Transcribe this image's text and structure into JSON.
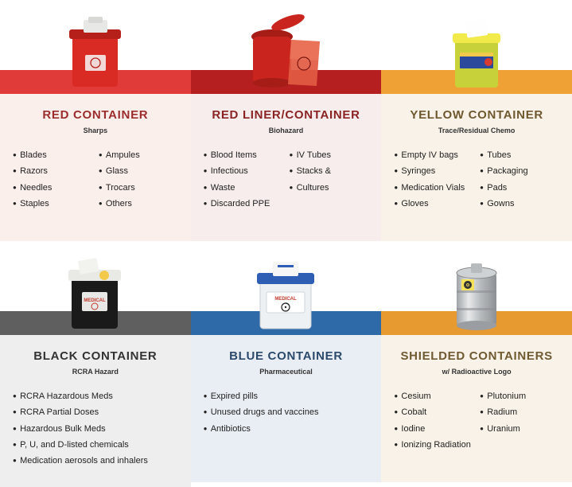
{
  "containers": [
    {
      "key": "red",
      "title": "RED CONTAINER",
      "subtitle": "Sharps",
      "band_color": "#e03a39",
      "bg_color": "#fbefec",
      "title_color": "#9b2d2d",
      "two_col": true,
      "items_left": [
        "Blades",
        "Razors",
        "Needles",
        "Staples"
      ],
      "items_right": [
        "Ampules",
        "Glass",
        "Trocars",
        "Others"
      ],
      "illus": "red_box"
    },
    {
      "key": "redliner",
      "title": "RED LINER/CONTAINER",
      "subtitle": "Biohazard",
      "band_color": "#b51f1f",
      "bg_color": "#f6edec",
      "title_color": "#8a2424",
      "two_col": true,
      "items_left": [
        "Blood Items",
        "Infectious",
        "Waste",
        "Discarded PPE"
      ],
      "items_right": [
        "IV Tubes",
        "Stacks &",
        "Cultures"
      ],
      "illus": "red_bin"
    },
    {
      "key": "yellow",
      "title": "YELLOW CONTAINER",
      "subtitle": "Trace/Residual Chemo",
      "band_color": "#f0a135",
      "bg_color": "#f9f2e8",
      "title_color": "#6e582f",
      "two_col": true,
      "items_left": [
        "Empty IV bags",
        "Syringes",
        "Medication Vials",
        "Gloves"
      ],
      "items_right": [
        "Tubes",
        "Packaging",
        "Pads",
        "Gowns"
      ],
      "illus": "yellow_box"
    },
    {
      "key": "black",
      "title": "BLACK CONTAINER",
      "subtitle": "RCRA Hazard",
      "band_color": "#5f5f5f",
      "bg_color": "#eeeeee",
      "title_color": "#333333",
      "two_col": false,
      "items_left": [
        "RCRA Hazardous Meds",
        "RCRA Partial Doses",
        "Hazardous Bulk Meds",
        "P, U, and D-listed chemicals",
        "Medication aerosols and inhalers"
      ],
      "items_right": [],
      "illus": "black_box"
    },
    {
      "key": "blue",
      "title": "BLUE CONTAINER",
      "subtitle": "Pharmaceutical",
      "band_color": "#2f6aa8",
      "bg_color": "#e9eef4",
      "title_color": "#2b4a6b",
      "two_col": false,
      "items_left": [
        "Expired pills",
        "Unused drugs and vaccines",
        "Antibiotics"
      ],
      "items_right": [],
      "illus": "blue_box"
    },
    {
      "key": "shielded",
      "title": "SHIELDED CONTAINERS",
      "subtitle": "w/ Radioactive Logo",
      "band_color": "#e79a2f",
      "bg_color": "#f9f2e8",
      "title_color": "#6f5a32",
      "two_col": true,
      "items_left": [
        "Cesium",
        "Cobalt",
        "Iodine",
        "Ionizing Radiation"
      ],
      "items_right": [
        "Plutonium",
        "Radium",
        "Uranium"
      ],
      "illus": "steel_drum"
    }
  ]
}
